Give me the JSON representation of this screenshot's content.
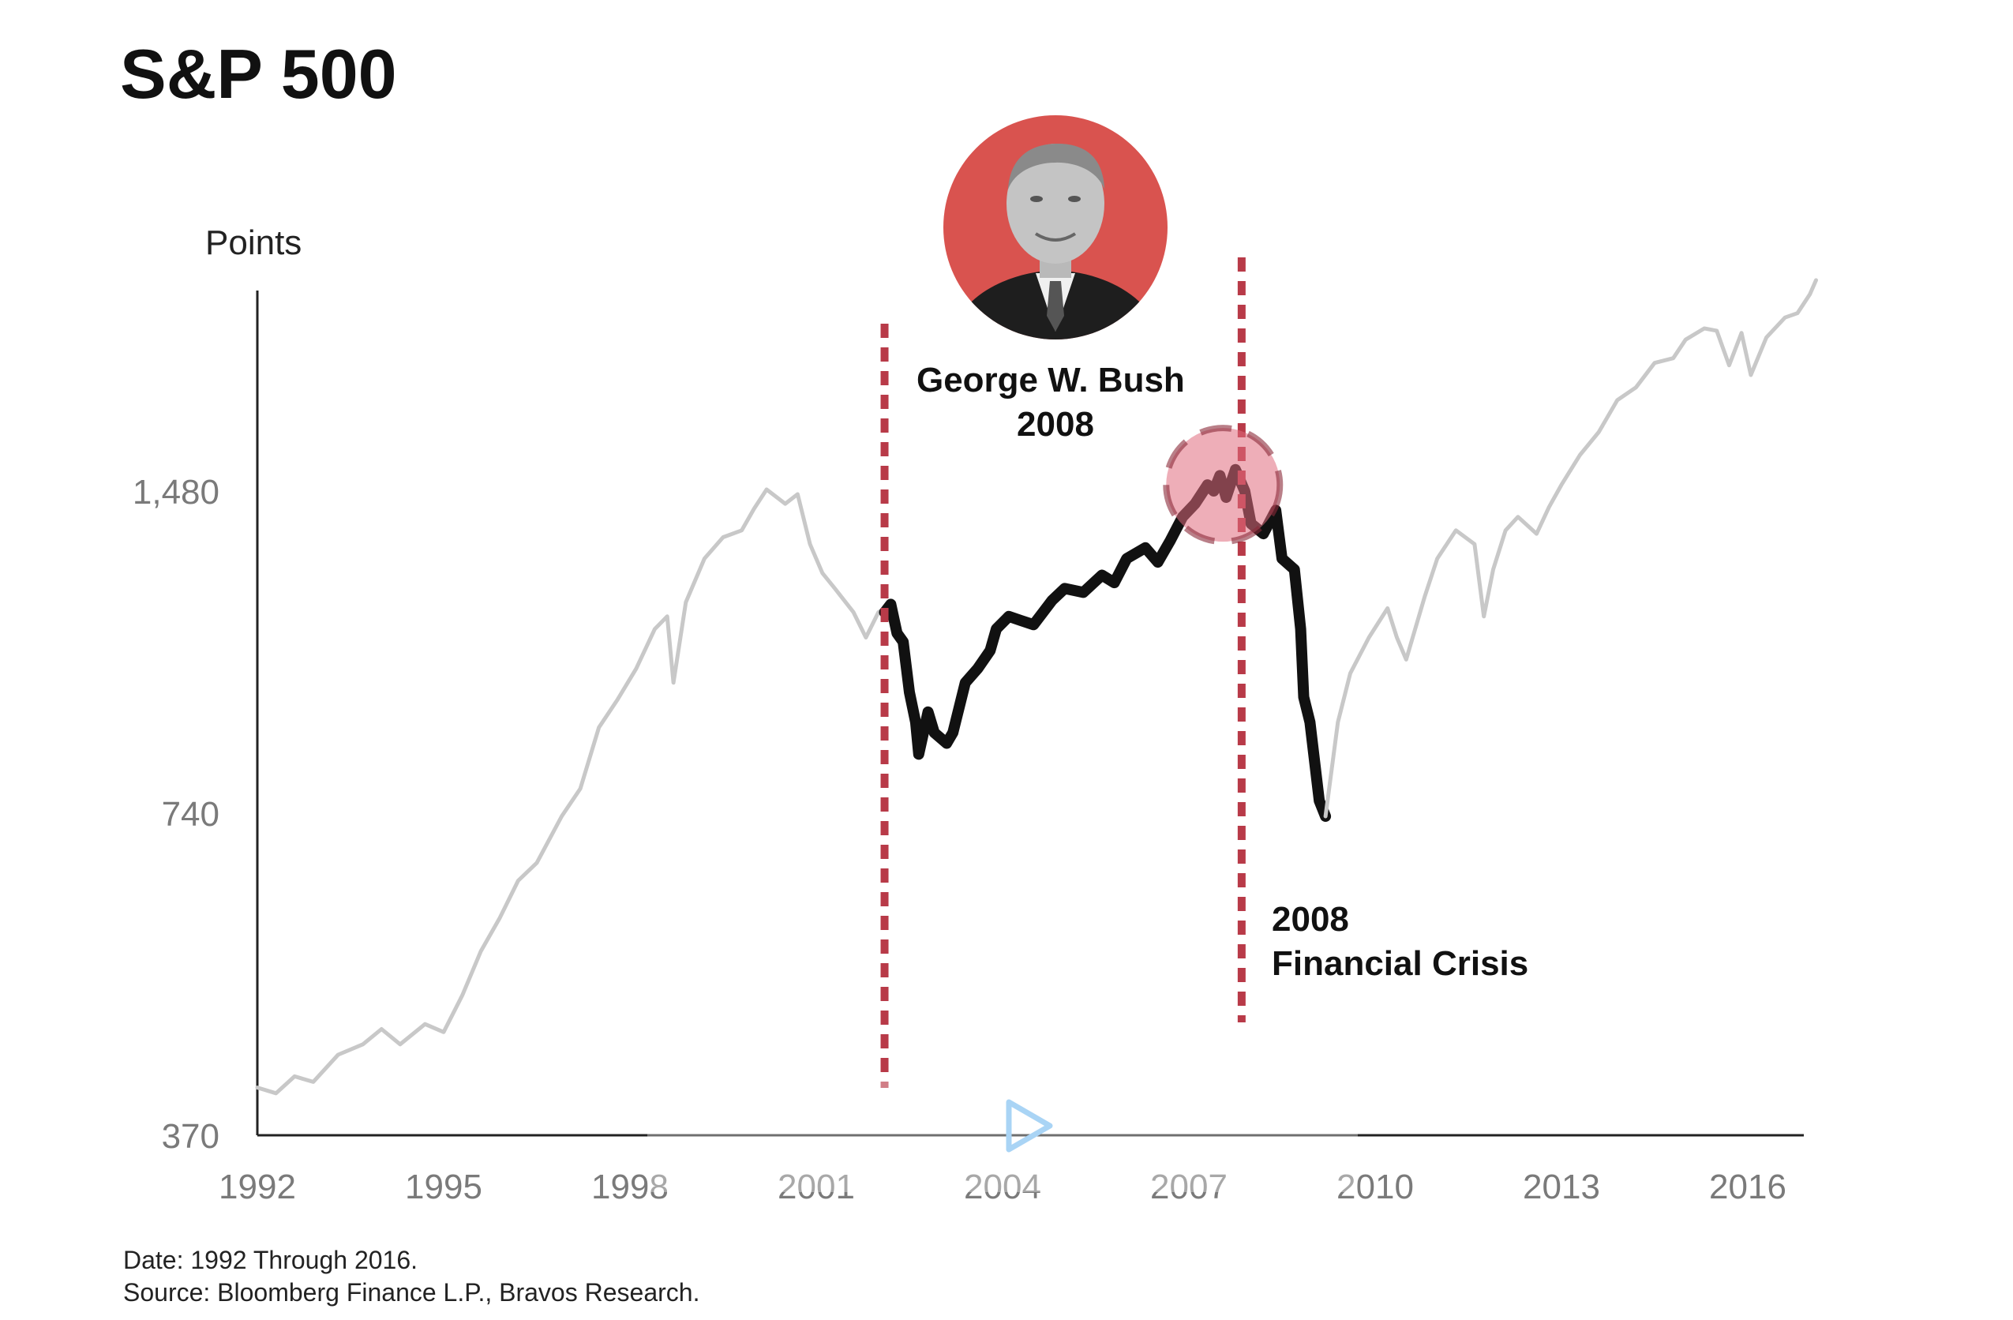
{
  "chart_data": {
    "type": "line",
    "title": "S&P 500",
    "ylabel": "Points",
    "xlabel": "",
    "y_scale": "log",
    "ylim": [
      370,
      2300
    ],
    "xlim": [
      1992,
      2017.3
    ],
    "y_ticks": [
      {
        "value": 370,
        "label": "370"
      },
      {
        "value": 740,
        "label": "740"
      },
      {
        "value": 1480,
        "label": "1,480"
      }
    ],
    "x_ticks": [
      {
        "value": 1992,
        "label": "1992"
      },
      {
        "value": 1995,
        "label": "1995"
      },
      {
        "value": 1998,
        "label": "1998"
      },
      {
        "value": 2001,
        "label": "2001"
      },
      {
        "value": 2004,
        "label": "2004"
      },
      {
        "value": 2007,
        "label": "2007"
      },
      {
        "value": 2010,
        "label": "2010"
      },
      {
        "value": 2013,
        "label": "2013"
      },
      {
        "value": 2016,
        "label": "2016"
      }
    ],
    "grid": false,
    "legend": "none",
    "series": [
      {
        "color": "#c8c8c8",
        "points": [
          [
            1992.0,
            410
          ],
          [
            1992.3,
            405
          ],
          [
            1992.6,
            420
          ],
          [
            1992.9,
            415
          ],
          [
            1993.3,
            440
          ],
          [
            1993.7,
            450
          ],
          [
            1994.0,
            465
          ],
          [
            1994.3,
            450
          ],
          [
            1994.7,
            470
          ],
          [
            1995.0,
            462
          ],
          [
            1995.3,
            500
          ],
          [
            1995.6,
            550
          ],
          [
            1995.9,
            590
          ],
          [
            1996.2,
            640
          ],
          [
            1996.5,
            665
          ],
          [
            1996.9,
            735
          ],
          [
            1997.2,
            780
          ],
          [
            1997.5,
            890
          ],
          [
            1997.8,
            945
          ],
          [
            1998.1,
            1010
          ],
          [
            1998.4,
            1100
          ],
          [
            1998.6,
            1130
          ],
          [
            1998.7,
            980
          ],
          [
            1998.9,
            1165
          ],
          [
            1999.2,
            1280
          ],
          [
            1999.5,
            1340
          ],
          [
            1999.8,
            1360
          ],
          [
            2000.0,
            1425
          ],
          [
            2000.2,
            1485
          ],
          [
            2000.5,
            1440
          ],
          [
            2000.7,
            1470
          ],
          [
            2000.9,
            1320
          ],
          [
            2001.1,
            1240
          ],
          [
            2001.3,
            1200
          ],
          [
            2001.6,
            1140
          ],
          [
            2001.8,
            1080
          ],
          [
            2002.0,
            1140
          ],
          [
            2002.1,
            1150
          ]
        ]
      },
      {
        "color": "#111111",
        "points": [
          [
            2002.1,
            1140
          ],
          [
            2002.2,
            1160
          ],
          [
            2002.3,
            1090
          ],
          [
            2002.4,
            1070
          ],
          [
            2002.5,
            960
          ],
          [
            2002.6,
            900
          ],
          [
            2002.65,
            840
          ],
          [
            2002.8,
            920
          ],
          [
            2002.9,
            880
          ],
          [
            2003.1,
            860
          ],
          [
            2003.2,
            880
          ],
          [
            2003.4,
            980
          ],
          [
            2003.6,
            1010
          ],
          [
            2003.8,
            1050
          ],
          [
            2003.9,
            1100
          ],
          [
            2004.1,
            1130
          ],
          [
            2004.3,
            1120
          ],
          [
            2004.5,
            1110
          ],
          [
            2004.8,
            1170
          ],
          [
            2005.0,
            1200
          ],
          [
            2005.3,
            1190
          ],
          [
            2005.6,
            1235
          ],
          [
            2005.8,
            1215
          ],
          [
            2006.0,
            1280
          ],
          [
            2006.3,
            1310
          ],
          [
            2006.5,
            1270
          ],
          [
            2006.7,
            1330
          ],
          [
            2006.9,
            1400
          ],
          [
            2007.1,
            1440
          ],
          [
            2007.3,
            1500
          ],
          [
            2007.4,
            1480
          ],
          [
            2007.5,
            1530
          ],
          [
            2007.6,
            1460
          ],
          [
            2007.75,
            1550
          ],
          [
            2007.9,
            1480
          ],
          [
            2008.0,
            1380
          ],
          [
            2008.2,
            1350
          ],
          [
            2008.4,
            1420
          ],
          [
            2008.5,
            1280
          ],
          [
            2008.7,
            1250
          ],
          [
            2008.8,
            1100
          ],
          [
            2008.85,
            950
          ],
          [
            2008.95,
            900
          ],
          [
            2009.1,
            760
          ],
          [
            2009.2,
            735
          ]
        ]
      },
      {
        "color": "#c8c8c8",
        "points": [
          [
            2009.2,
            735
          ],
          [
            2009.4,
            900
          ],
          [
            2009.6,
            1000
          ],
          [
            2009.9,
            1080
          ],
          [
            2010.2,
            1150
          ],
          [
            2010.35,
            1080
          ],
          [
            2010.5,
            1030
          ],
          [
            2010.8,
            1180
          ],
          [
            2011.0,
            1280
          ],
          [
            2011.3,
            1360
          ],
          [
            2011.6,
            1320
          ],
          [
            2011.75,
            1130
          ],
          [
            2011.9,
            1250
          ],
          [
            2012.1,
            1360
          ],
          [
            2012.3,
            1400
          ],
          [
            2012.6,
            1350
          ],
          [
            2012.8,
            1430
          ],
          [
            2013.0,
            1500
          ],
          [
            2013.3,
            1600
          ],
          [
            2013.6,
            1680
          ],
          [
            2013.9,
            1800
          ],
          [
            2014.2,
            1850
          ],
          [
            2014.5,
            1950
          ],
          [
            2014.8,
            1970
          ],
          [
            2015.0,
            2050
          ],
          [
            2015.3,
            2100
          ],
          [
            2015.5,
            2090
          ],
          [
            2015.7,
            1940
          ],
          [
            2015.9,
            2080
          ],
          [
            2016.05,
            1900
          ],
          [
            2016.3,
            2060
          ],
          [
            2016.6,
            2150
          ],
          [
            2016.8,
            2170
          ],
          [
            2017.0,
            2260
          ],
          [
            2017.1,
            2330
          ]
        ]
      }
    ],
    "markers": [
      {
        "type": "vertical-dashed-line",
        "x": 2002.1,
        "color": "#b83a48"
      },
      {
        "type": "vertical-dashed-line",
        "x": 2007.85,
        "color": "#b83a48"
      },
      {
        "type": "highlight-circle",
        "x": 2007.55,
        "y": 1500,
        "color": "#e06b7d"
      }
    ],
    "annotations": [
      {
        "lines": [
          "George W. Bush",
          "2008"
        ],
        "x": 2005.3
      },
      {
        "lines": [
          "2008",
          "Financial Crisis"
        ],
        "x": 2008.4
      }
    ],
    "portrait": {
      "subject": "George W. Bush",
      "background_color": "#d9534f"
    },
    "notes": [
      "Date: 1992 Through 2016.",
      "Source: Bloomberg Finance L.P., Bravos Research."
    ]
  },
  "controls": {
    "play_icon": "play-icon",
    "play_color": "#a9d4f5"
  }
}
